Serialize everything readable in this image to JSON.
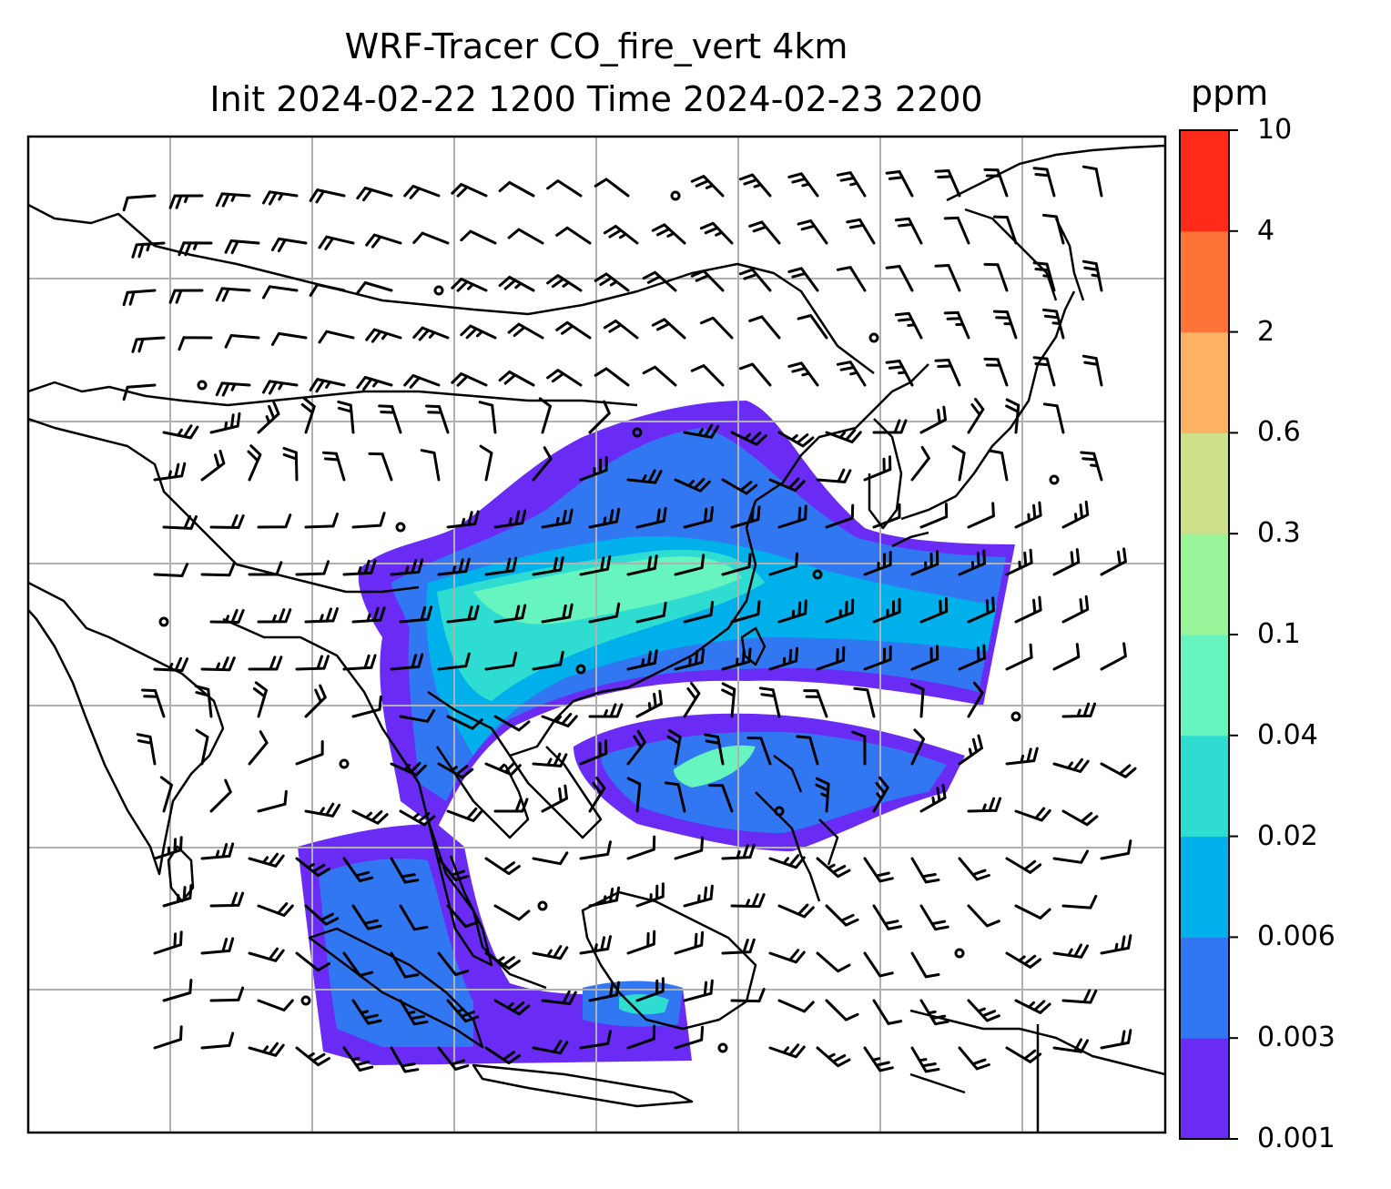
{
  "title": {
    "line1": "WRF-Tracer CO_fire_vert 4km",
    "line2": "Init 2024-02-22 1200 Time 2024-02-23 2200"
  },
  "map": {
    "variable": "CO_fire_vert",
    "level": "4km",
    "init": "2024-02-22 1200",
    "valid": "2024-02-23 2200",
    "overlay": "wind barbs",
    "gridlines": true,
    "coastline_color": "#000000",
    "grid_color": "#b0b0b0"
  },
  "colorbar": {
    "unit": "ppm",
    "ticks": [
      "0.001",
      "0.003",
      "0.006",
      "0.02",
      "0.04",
      "0.1",
      "0.3",
      "0.6",
      "2",
      "4",
      "10"
    ],
    "colors": [
      "#6a2cf5",
      "#3277f2",
      "#00b0ea",
      "#2fdcd2",
      "#66f5be",
      "#9af59a",
      "#cfe08a",
      "#fcb163",
      "#ff7238",
      "#ff2a1a"
    ]
  }
}
